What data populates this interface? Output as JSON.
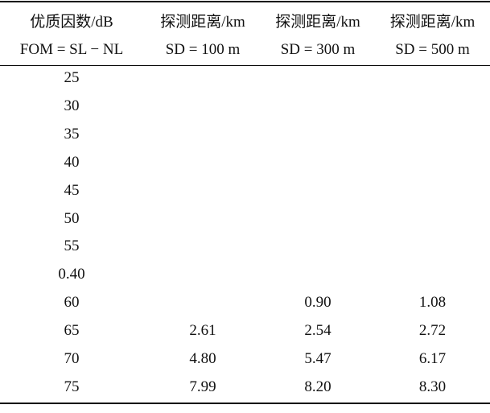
{
  "header": {
    "columns": [
      {
        "title": "优质因数/dB",
        "subtitle": "FOM = SL − NL"
      },
      {
        "title": "探测距离/km",
        "subtitle": "SD = 100 m"
      },
      {
        "title": "探测距离/km",
        "subtitle": "SD = 300 m"
      },
      {
        "title": "探测距离/km",
        "subtitle": "SD = 500 m"
      }
    ]
  },
  "table": {
    "rows": [
      [
        "25",
        null,
        null,
        null
      ],
      [
        "30",
        null,
        null,
        null
      ],
      [
        "35",
        null,
        null,
        null
      ],
      [
        "40",
        null,
        null,
        null
      ],
      [
        "45",
        null,
        null,
        null
      ],
      [
        "50",
        null,
        null,
        null
      ],
      [
        "55",
        null,
        null,
        null
      ],
      [
        "0.40",
        null,
        null,
        null
      ],
      [
        "60",
        null,
        "0.90",
        "1.08"
      ],
      [
        "65",
        "2.61",
        "2.54",
        "2.72"
      ],
      [
        "70",
        "4.80",
        "5.47",
        "6.17"
      ],
      [
        "75",
        "7.99",
        "8.20",
        "8.30"
      ]
    ]
  }
}
